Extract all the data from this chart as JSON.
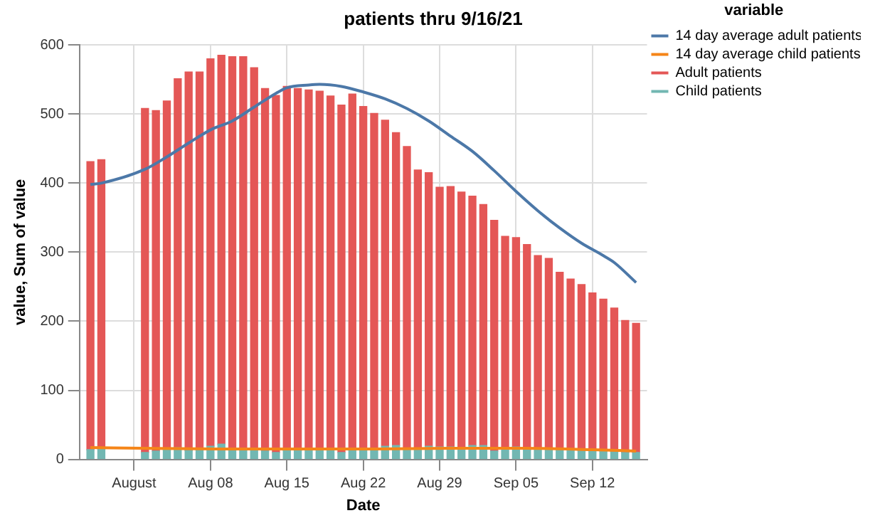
{
  "chart_data": {
    "type": "bar",
    "title": "patients thru 9/16/21",
    "xlabel": "Date",
    "ylabel": "value, Sum of value",
    "legend_title": "variable",
    "legend": "top right",
    "grid": true,
    "stacked": true,
    "marker": "none",
    "xlim": [
      "--07-27",
      "--09-17"
    ],
    "xticks": [
      {
        "value": "--08-01",
        "label": "August"
      },
      {
        "value": "--08-08",
        "label": "Aug 08"
      },
      {
        "value": "--08-15",
        "label": "Aug 15"
      },
      {
        "value": "--08-22",
        "label": "Aug 22"
      },
      {
        "value": "--08-29",
        "label": "Aug 29"
      },
      {
        "value": "--09-05",
        "label": "Sep 05"
      },
      {
        "value": "--09-12",
        "label": "Sep 12"
      }
    ],
    "ylim": [
      0,
      600
    ],
    "yticks": [
      0,
      100,
      200,
      300,
      400,
      500,
      600
    ],
    "x": [
      "--07-28",
      "--07-29",
      "--08-02",
      "--08-03",
      "--08-04",
      "--08-05",
      "--08-06",
      "--08-07",
      "--08-08",
      "--08-09",
      "--08-10",
      "--08-11",
      "--08-12",
      "--08-13",
      "--08-14",
      "--08-15",
      "--08-16",
      "--08-17",
      "--08-18",
      "--08-19",
      "--08-20",
      "--08-21",
      "--08-22",
      "--08-23",
      "--08-24",
      "--08-25",
      "--08-26",
      "--08-27",
      "--08-28",
      "--08-29",
      "--08-30",
      "--08-31",
      "--09-01",
      "--09-02",
      "--09-03",
      "--09-04",
      "--09-05",
      "--09-06",
      "--09-07",
      "--09-08",
      "--09-09",
      "--09-10",
      "--09-11",
      "--09-12",
      "--09-13",
      "--09-14",
      "--09-15",
      "--09-16"
    ],
    "series": [
      {
        "name": "14 day average adult patients",
        "type": "line",
        "color": "#4c78a8",
        "x": [
          "--07-28",
          "--07-29",
          "--08-02",
          "--08-04",
          "--08-06",
          "--08-08",
          "--08-10",
          "--08-12",
          "--08-14",
          "--08-15",
          "--08-17",
          "--08-18",
          "--08-20",
          "--08-22",
          "--08-24",
          "--08-26",
          "--08-28",
          "--08-30",
          "--09-01",
          "--09-03",
          "--09-05",
          "--09-07",
          "--09-09",
          "--09-11",
          "--09-13",
          "--09-14",
          "--09-16"
        ],
        "values": [
          398,
          400,
          420,
          438,
          458,
          477,
          490,
          510,
          530,
          538,
          542,
          543,
          540,
          532,
          522,
          508,
          490,
          468,
          446,
          418,
          388,
          360,
          335,
          313,
          295,
          285,
          256
        ]
      },
      {
        "name": "14 day average child patients",
        "type": "line",
        "color": "#f58518",
        "x": [
          "--07-28",
          "--08-02",
          "--08-09",
          "--08-16",
          "--08-23",
          "--08-30",
          "--09-06",
          "--09-12",
          "--09-16"
        ],
        "values": [
          17,
          16,
          15,
          15,
          15,
          16,
          16,
          14,
          12
        ]
      },
      {
        "name": "Child patients",
        "color": "#72b7b2",
        "values": [
          14,
          15,
          10,
          12,
          14,
          17,
          13,
          14,
          19,
          22,
          16,
          14,
          14,
          12,
          10,
          13,
          13,
          15,
          16,
          15,
          10,
          14,
          15,
          14,
          19,
          20,
          15,
          16,
          19,
          18,
          18,
          17,
          20,
          20,
          12,
          17,
          18,
          14,
          15,
          15,
          15,
          15,
          13,
          13,
          12,
          11,
          10,
          10
        ]
      },
      {
        "name": "Adult patients",
        "color": "#e45756",
        "values": [
          417,
          419,
          498,
          493,
          505,
          534,
          548,
          547,
          561,
          563,
          567,
          569,
          553,
          525,
          517,
          527,
          524,
          520,
          517,
          511,
          503,
          515,
          496,
          487,
          472,
          453,
          438,
          403,
          396,
          376,
          377,
          370,
          361,
          349,
          334,
          306,
          303,
          297,
          280,
          276,
          256,
          246,
          240,
          228,
          220,
          208,
          191,
          187
        ]
      }
    ]
  }
}
